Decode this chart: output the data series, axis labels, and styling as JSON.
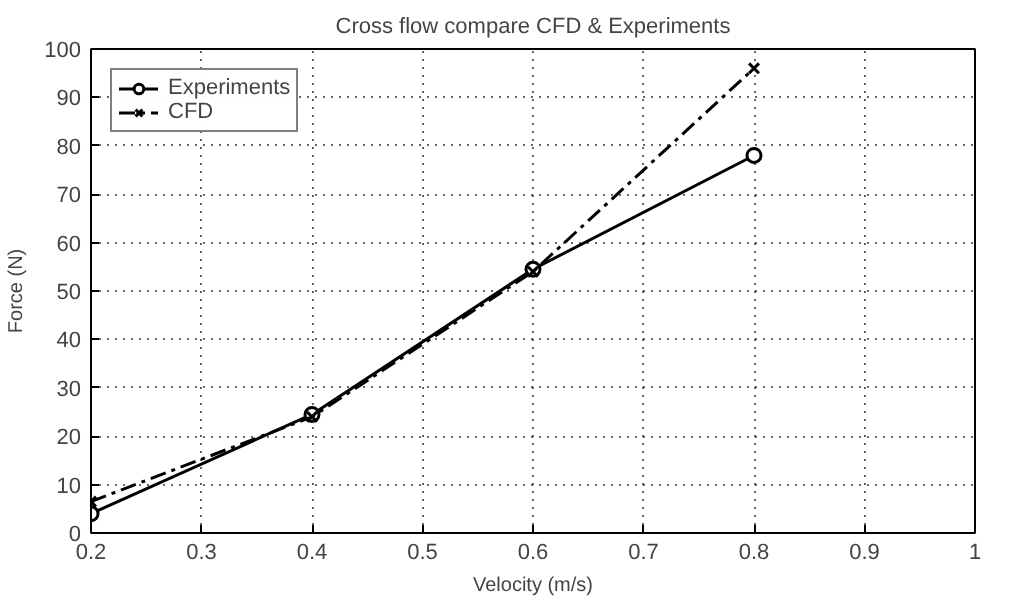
{
  "chart_data": {
    "type": "line",
    "title": "Cross flow compare CFD & Experiments",
    "xlabel": "Velocity (m/s)",
    "ylabel": "Force (N)",
    "x": [
      0.2,
      0.4,
      0.6,
      0.8
    ],
    "series": [
      {
        "name": "Experiments",
        "color": "#000000",
        "values": [
          4,
          24.5,
          54.5,
          78
        ],
        "marker": "circle",
        "line_style": "solid"
      },
      {
        "name": "CFD",
        "color": "#000000",
        "values": [
          6.5,
          24,
          54,
          96
        ],
        "marker": "cross",
        "line_style": "dashed"
      }
    ],
    "xlim": [
      0.2,
      1
    ],
    "xticks": [
      0.2,
      0.3,
      0.4,
      0.5,
      0.6,
      0.7,
      0.8,
      0.9,
      1
    ],
    "ylim": [
      0,
      100
    ],
    "yticks": [
      0,
      10,
      20,
      30,
      40,
      50,
      60,
      70,
      80,
      90,
      100
    ],
    "grid": true,
    "legend": "top left"
  }
}
